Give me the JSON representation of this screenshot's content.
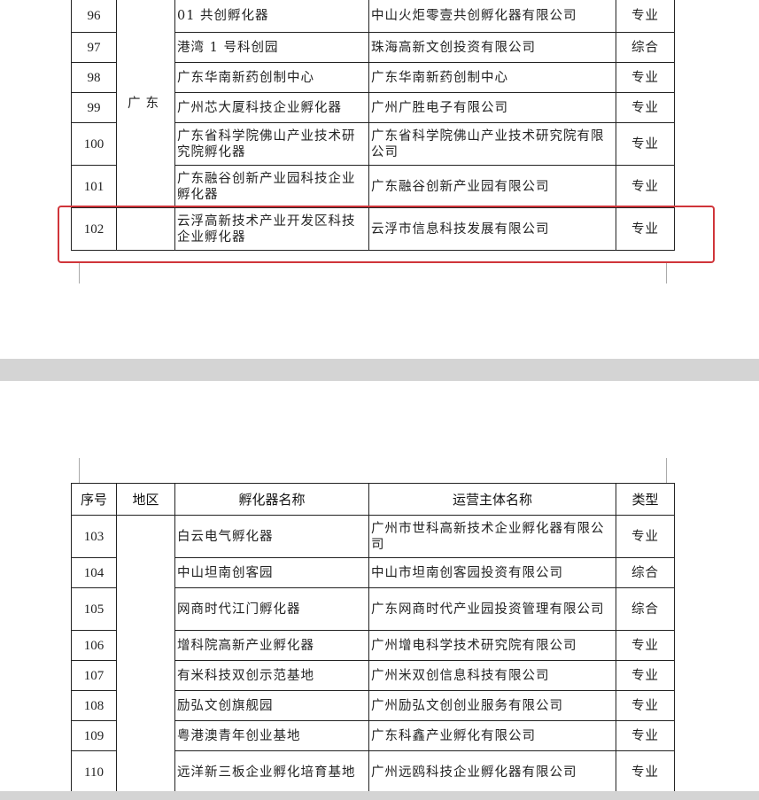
{
  "page1": {
    "region": "广东",
    "rows": [
      {
        "no": "96",
        "name": "01 共创孵化器",
        "operator": "中山火炬零壹共创孵化器有限公司",
        "type": "专业"
      },
      {
        "no": "97",
        "name": "港湾 1 号科创园",
        "operator": "珠海高新文创投资有限公司",
        "type": "综合"
      },
      {
        "no": "98",
        "name": "广东华南新药创制中心",
        "operator": "广东华南新药创制中心",
        "type": "专业"
      },
      {
        "no": "99",
        "name": "广州芯大厦科技企业孵化器",
        "operator": "广州广胜电子有限公司",
        "type": "专业"
      },
      {
        "no": "100",
        "name": "广东省科学院佛山产业技术研究院孵化器",
        "operator": "广东省科学院佛山产业技术研究院有限公司",
        "type": "专业"
      },
      {
        "no": "101",
        "name": "广东融谷创新产业园科技企业孵化器",
        "operator": "广东融谷创新产业园有限公司",
        "type": "专业"
      },
      {
        "no": "102",
        "name": "云浮高新技术产业开发区科技企业孵化器",
        "operator": "云浮市信息科技发展有限公司",
        "type": "专业"
      }
    ]
  },
  "page2": {
    "headers": {
      "no": "序号",
      "region": "地区",
      "name": "孵化器名称",
      "operator": "运营主体名称",
      "type": "类型"
    },
    "rows": [
      {
        "no": "103",
        "name": "白云电气孵化器",
        "operator": "广州市世科高新技术企业孵化器有限公司",
        "type": "专业"
      },
      {
        "no": "104",
        "name": "中山坦南创客园",
        "operator": "中山市坦南创客园投资有限公司",
        "type": "综合"
      },
      {
        "no": "105",
        "name": "网商时代江门孵化器",
        "operator": "广东网商时代产业园投资管理有限公司",
        "type": "综合"
      },
      {
        "no": "106",
        "name": "增科院高新产业孵化器",
        "operator": "广州增电科学技术研究院有限公司",
        "type": "专业"
      },
      {
        "no": "107",
        "name": "有米科技双创示范基地",
        "operator": "广州米双创信息科技有限公司",
        "type": "专业"
      },
      {
        "no": "108",
        "name": "励弘文创旗舰园",
        "operator": "广州励弘文创创业服务有限公司",
        "type": "专业"
      },
      {
        "no": "109",
        "name": "粤港澳青年创业基地",
        "operator": "广东科鑫产业孵化有限公司",
        "type": "专业"
      },
      {
        "no": "110",
        "name": "远洋新三板企业孵化培育基地",
        "operator": "广州远鸥科技企业孵化器有限公司",
        "type": "专业"
      }
    ]
  },
  "highlight_color": "#d0353a"
}
